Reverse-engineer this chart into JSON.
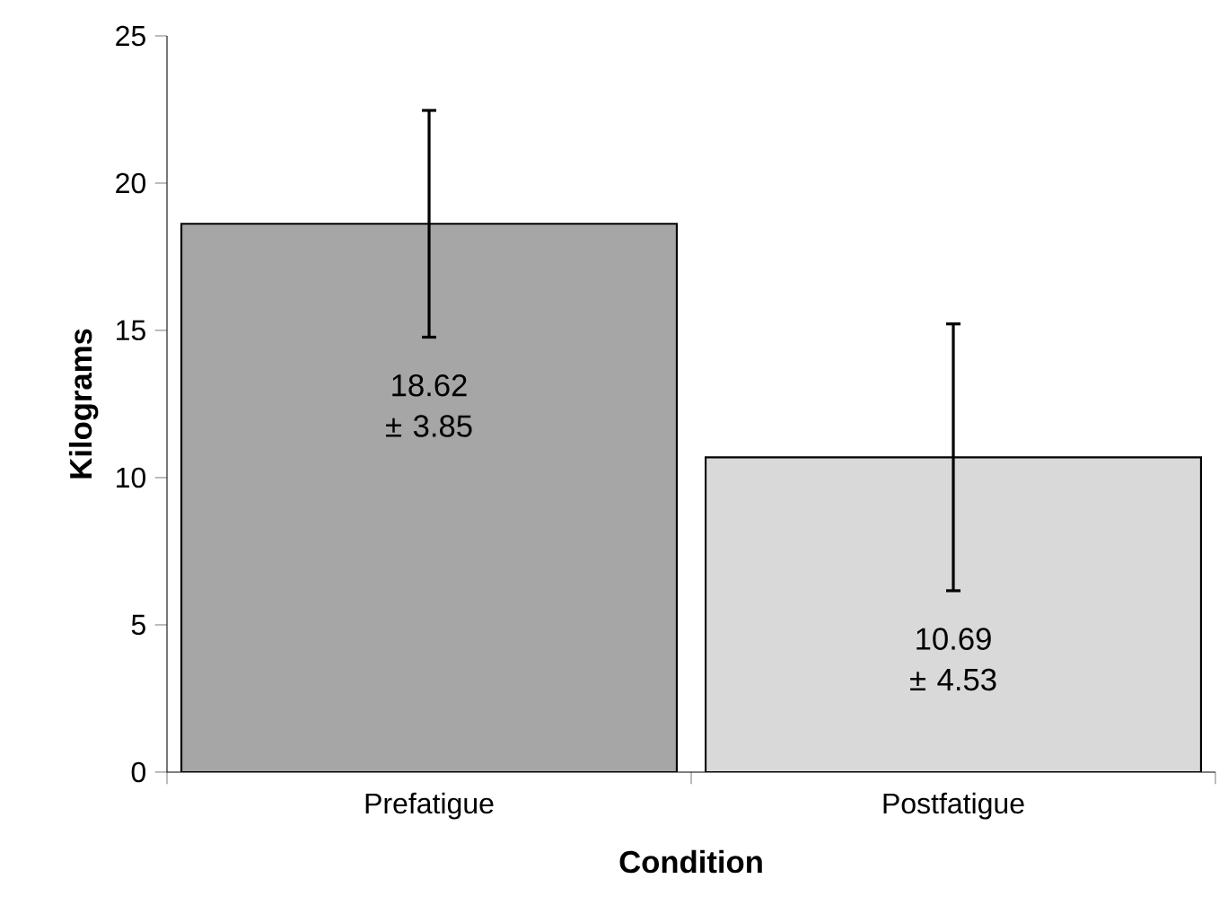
{
  "chart_data": {
    "type": "bar",
    "xlabel": "Condition",
    "ylabel": "Kilograms",
    "categories": [
      "Prefatigue",
      "Postfatigue"
    ],
    "values": [
      18.62,
      10.69
    ],
    "errors": [
      3.85,
      4.53
    ],
    "colors": [
      "#a6a6a6",
      "#d9d9d9"
    ],
    "value_labels": [
      "18.62 ± 3.85",
      "10.69 ± 4.53"
    ],
    "ylim": [
      0,
      25
    ],
    "yticks": [
      0,
      5,
      10,
      15,
      20,
      25
    ],
    "grid": false
  }
}
